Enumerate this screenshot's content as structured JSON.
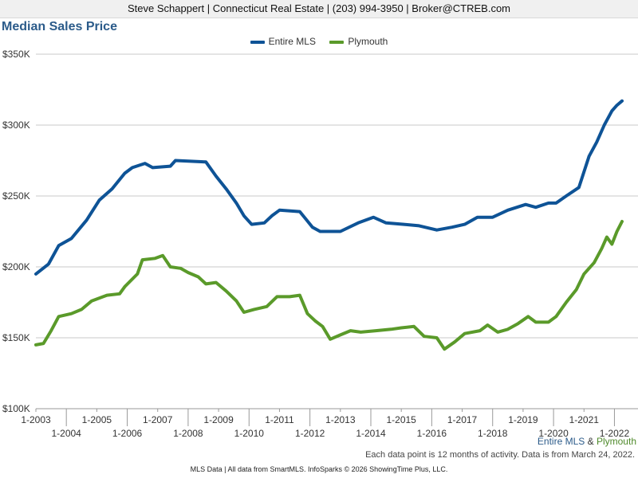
{
  "header": {
    "contact": "Steve Schappert | Connecticut Real Estate | (203) 994-3950 | Broker@CTREB.com"
  },
  "chart_data": {
    "type": "line",
    "title": "Median Sales Price",
    "xlabel": "",
    "ylabel": "",
    "x_range": [
      "2003-01",
      "2022-04"
    ],
    "ylim": [
      100000,
      350000
    ],
    "y_ticks": [
      100000,
      150000,
      200000,
      250000,
      300000,
      350000
    ],
    "y_tick_labels": [
      "$100K",
      "$150K",
      "$200K",
      "$250K",
      "$300K",
      "$350K"
    ],
    "x_tick_labels_upper": [
      "1-2003",
      "1-2005",
      "1-2007",
      "1-2009",
      "1-2011",
      "1-2013",
      "1-2015",
      "1-2017",
      "1-2019",
      "1-2021"
    ],
    "x_tick_labels_lower": [
      "1-2004",
      "1-2006",
      "1-2008",
      "1-2010",
      "1-2012",
      "1-2014",
      "1-2016",
      "1-2018",
      "1-2020",
      "1-2022"
    ],
    "grid": true,
    "legend_position": "top-center",
    "series": [
      {
        "name": "Entire MLS",
        "color": "#0e5396",
        "points": [
          [
            "2003-01",
            195000
          ],
          [
            "2003-06",
            202000
          ],
          [
            "2003-10",
            215000
          ],
          [
            "2004-03",
            220000
          ],
          [
            "2004-09",
            233000
          ],
          [
            "2005-02",
            247000
          ],
          [
            "2005-07",
            255000
          ],
          [
            "2005-12",
            266000
          ],
          [
            "2006-03",
            270000
          ],
          [
            "2006-08",
            273000
          ],
          [
            "2006-11",
            270000
          ],
          [
            "2007-06",
            271000
          ],
          [
            "2007-08",
            275000
          ],
          [
            "2008-08",
            274000
          ],
          [
            "2008-12",
            264000
          ],
          [
            "2009-04",
            255000
          ],
          [
            "2009-08",
            245000
          ],
          [
            "2009-11",
            236000
          ],
          [
            "2010-02",
            230000
          ],
          [
            "2010-07",
            231000
          ],
          [
            "2010-10",
            236000
          ],
          [
            "2011-01",
            240000
          ],
          [
            "2011-09",
            239000
          ],
          [
            "2012-02",
            228000
          ],
          [
            "2012-05",
            225000
          ],
          [
            "2013-01",
            225000
          ],
          [
            "2013-08",
            231000
          ],
          [
            "2014-02",
            235000
          ],
          [
            "2014-07",
            231000
          ],
          [
            "2015-02",
            230000
          ],
          [
            "2015-08",
            229000
          ],
          [
            "2016-03",
            226000
          ],
          [
            "2016-09",
            228000
          ],
          [
            "2017-02",
            230000
          ],
          [
            "2017-07",
            235000
          ],
          [
            "2018-01",
            235000
          ],
          [
            "2018-07",
            240000
          ],
          [
            "2019-02",
            244000
          ],
          [
            "2019-06",
            242000
          ],
          [
            "2019-11",
            245000
          ],
          [
            "2020-02",
            245000
          ],
          [
            "2020-06",
            250000
          ],
          [
            "2020-11",
            256000
          ],
          [
            "2021-03",
            278000
          ],
          [
            "2021-06",
            288000
          ],
          [
            "2021-09",
            300000
          ],
          [
            "2021-12",
            310000
          ],
          [
            "2022-02",
            314000
          ],
          [
            "2022-04",
            317000
          ]
        ]
      },
      {
        "name": "Plymouth",
        "color": "#5a9a2a",
        "points": [
          [
            "2003-01",
            145000
          ],
          [
            "2003-04",
            146000
          ],
          [
            "2003-07",
            155000
          ],
          [
            "2003-10",
            165000
          ],
          [
            "2004-03",
            167000
          ],
          [
            "2004-07",
            170000
          ],
          [
            "2004-11",
            176000
          ],
          [
            "2005-05",
            180000
          ],
          [
            "2005-10",
            181000
          ],
          [
            "2005-12",
            186000
          ],
          [
            "2006-05",
            195000
          ],
          [
            "2006-07",
            205000
          ],
          [
            "2006-12",
            206000
          ],
          [
            "2007-03",
            208000
          ],
          [
            "2007-06",
            200000
          ],
          [
            "2007-10",
            199000
          ],
          [
            "2008-01",
            196000
          ],
          [
            "2008-05",
            193000
          ],
          [
            "2008-08",
            188000
          ],
          [
            "2008-12",
            189000
          ],
          [
            "2009-04",
            183000
          ],
          [
            "2009-08",
            176000
          ],
          [
            "2009-11",
            168000
          ],
          [
            "2010-03",
            170000
          ],
          [
            "2010-08",
            172000
          ],
          [
            "2010-12",
            179000
          ],
          [
            "2011-05",
            179000
          ],
          [
            "2011-09",
            180000
          ],
          [
            "2011-12",
            167000
          ],
          [
            "2012-03",
            162000
          ],
          [
            "2012-06",
            158000
          ],
          [
            "2012-09",
            149000
          ],
          [
            "2013-01",
            152000
          ],
          [
            "2013-05",
            155000
          ],
          [
            "2013-09",
            154000
          ],
          [
            "2014-03",
            155000
          ],
          [
            "2014-09",
            156000
          ],
          [
            "2015-01",
            157000
          ],
          [
            "2015-06",
            158000
          ],
          [
            "2015-10",
            151000
          ],
          [
            "2016-03",
            150000
          ],
          [
            "2016-06",
            142000
          ],
          [
            "2016-10",
            147000
          ],
          [
            "2017-02",
            153000
          ],
          [
            "2017-08",
            155000
          ],
          [
            "2017-11",
            159000
          ],
          [
            "2018-03",
            154000
          ],
          [
            "2018-07",
            156000
          ],
          [
            "2018-11",
            160000
          ],
          [
            "2019-03",
            165000
          ],
          [
            "2019-06",
            161000
          ],
          [
            "2019-11",
            161000
          ],
          [
            "2020-02",
            165000
          ],
          [
            "2020-06",
            175000
          ],
          [
            "2020-10",
            184000
          ],
          [
            "2021-01",
            195000
          ],
          [
            "2021-05",
            203000
          ],
          [
            "2021-08",
            213000
          ],
          [
            "2021-10",
            221000
          ],
          [
            "2021-12",
            216000
          ],
          [
            "2022-02",
            225000
          ],
          [
            "2022-04",
            232000
          ]
        ]
      }
    ],
    "corner_label": {
      "series_a": "Entire MLS",
      "joiner": "&",
      "series_b": "Plymouth"
    },
    "note": "Each data point is 12 months of activity. Data is from March 24, 2022."
  },
  "footer": {
    "text": "MLS Data | All data from SmartMLS. InfoSparks © 2026 ShowingTime Plus, LLC."
  }
}
